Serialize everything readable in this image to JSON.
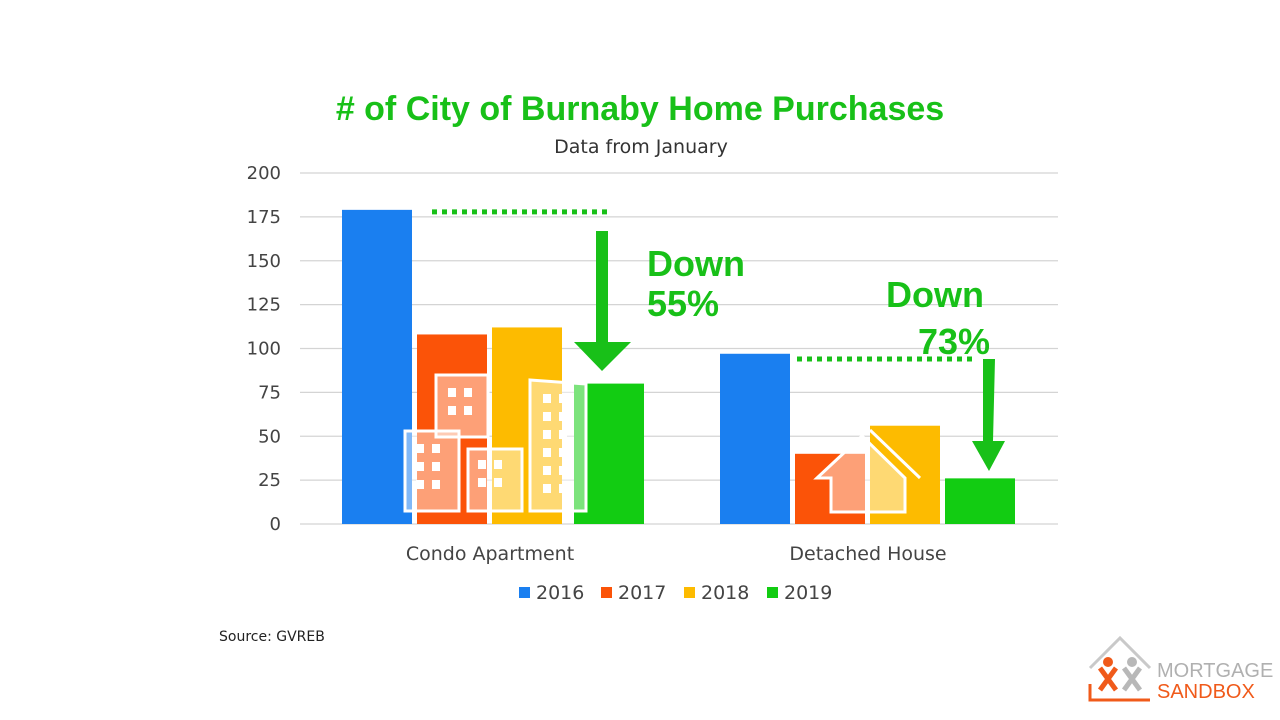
{
  "chart_data": {
    "type": "bar",
    "title": "# of City of Burnaby Home Purchases",
    "subtitle": "Data from January",
    "categories": [
      "Condo Apartment",
      "Detached House"
    ],
    "series": [
      {
        "name": "2016",
        "color": "#1a7ff0",
        "values": [
          179,
          97
        ]
      },
      {
        "name": "2017",
        "color": "#fb5308",
        "values": [
          108,
          40
        ]
      },
      {
        "name": "2018",
        "color": "#fdbb00",
        "values": [
          112,
          56
        ]
      },
      {
        "name": "2019",
        "color": "#12cc12",
        "values": [
          80,
          26
        ]
      }
    ],
    "ylim": [
      0,
      200
    ],
    "yticks": [
      0,
      25,
      50,
      75,
      100,
      125,
      150,
      175,
      200
    ],
    "grid": true,
    "legend": "bottom",
    "annotations": [
      {
        "line1": "Down",
        "line2": "55%",
        "category": "Condo Apartment"
      },
      {
        "line1": "Down",
        "line2": "73%",
        "category": "Detached House"
      }
    ],
    "title_color": "#18c018",
    "annotation_color": "#18c018"
  },
  "source": "Source: GVREB",
  "logo": {
    "line1": "MORTGAGE",
    "line2": "SANDBOX",
    "line1_color": "#b0b0b0",
    "line2_color": "#f05a1a"
  }
}
